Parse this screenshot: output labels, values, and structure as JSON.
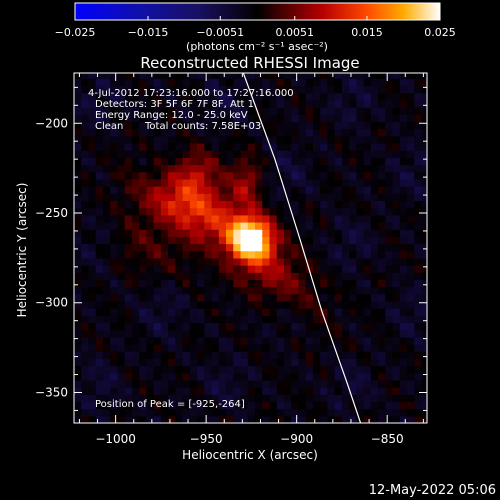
{
  "colors": {
    "background": "#000000",
    "foreground": "#ffffff",
    "limb": "#ffffff"
  },
  "colorbar": {
    "min": -0.025,
    "max": 0.025,
    "tick_labels": [
      "−0.025",
      "−0.015",
      "−0.0051",
      "0.0051",
      "0.015",
      "0.025"
    ],
    "tick_values": [
      -0.025,
      -0.015,
      -0.0051,
      0.0051,
      0.015,
      0.025
    ],
    "unit_label": "(photons cm⁻² s⁻¹ asec⁻²)"
  },
  "chart_data": {
    "type": "heatmap",
    "title": "Reconstructed RHESSI Image",
    "xlabel": "Heliocentric X (arcsec)",
    "ylabel": "Heliocentric Y (arcsec)",
    "xlim": [
      -1023,
      -828
    ],
    "ylim": [
      -367,
      -172
    ],
    "xticks": [
      -1000,
      -950,
      -900,
      -850
    ],
    "xtick_labels": [
      "−1000",
      "−950",
      "−900",
      "−850"
    ],
    "yticks": [
      -200,
      -250,
      -300,
      -350
    ],
    "ytick_labels": [
      "−200",
      "−250",
      "−300",
      "−350"
    ],
    "annotations": {
      "time_range": "4-Jul-2012 17:23:16.000 to 17:27:16.000",
      "detectors": "Detectors: 3F 5F 6F 7F 8F, Att 1",
      "energy_range": "Energy Range: 12.0 - 25.0 keV",
      "algorithm": "Clean",
      "total_counts": "Total counts: 7.58E+03",
      "peak_position": "Position of Peak = [-925,-264]"
    },
    "peak": {
      "x": -925,
      "y": -264,
      "value": 0.025
    },
    "sources": [
      {
        "x": -925,
        "y": -264,
        "sx": 8,
        "sy": 8,
        "amp": 0.025
      },
      {
        "x": -940,
        "y": -258,
        "sx": 26,
        "sy": 11,
        "angle": -40,
        "amp": 0.012
      },
      {
        "x": -970,
        "y": -243,
        "sx": 16,
        "sy": 10,
        "angle": -30,
        "amp": 0.008
      },
      {
        "x": -955,
        "y": -227,
        "sx": 9,
        "sy": 9,
        "amp": 0.007
      },
      {
        "x": -928,
        "y": -233,
        "sx": 6,
        "sy": 10,
        "amp": 0.008
      },
      {
        "x": -905,
        "y": -292,
        "sx": 18,
        "sy": 10,
        "angle": -45,
        "amp": 0.0045
      },
      {
        "x": -985,
        "y": -268,
        "sx": 18,
        "sy": 10,
        "angle": -20,
        "amp": 0.0035
      }
    ],
    "limb": [
      {
        "x": -932,
        "y": -165
      },
      {
        "x": -912,
        "y": -220
      },
      {
        "x": -899,
        "y": -262
      },
      {
        "x": -886,
        "y": -305
      },
      {
        "x": -872,
        "y": -345
      },
      {
        "x": -863,
        "y": -372
      }
    ]
  },
  "footer": {
    "date_stamp": "12-May-2022 05:06"
  }
}
